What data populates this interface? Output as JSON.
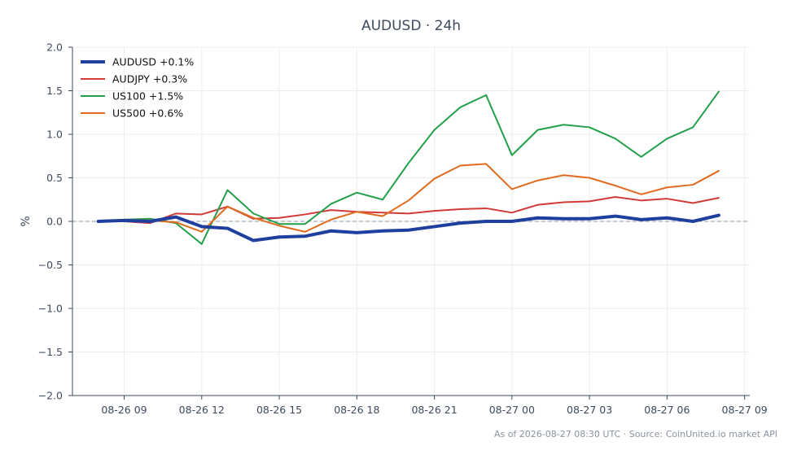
{
  "chart_data": {
    "type": "line",
    "title": "AUDUSD · 24h",
    "ylabel": "%",
    "xlabel": "",
    "ylim": [
      -2.0,
      2.0
    ],
    "yticks": [
      "2.0",
      "1.5",
      "1.0",
      "0.5",
      "0.0",
      "−0.5",
      "−1.0",
      "−1.5",
      "−2.0"
    ],
    "ytick_values": [
      2.0,
      1.5,
      1.0,
      0.5,
      0.0,
      -0.5,
      -1.0,
      -1.5,
      -2.0
    ],
    "xticks": [
      "08-26 09",
      "08-26 12",
      "08-26 15",
      "08-26 18",
      "08-26 21",
      "08-27 00",
      "08-27 03",
      "08-27 06",
      "08-27 09"
    ],
    "x": [
      "08-26 08:00",
      "08-26 09:00",
      "08-26 10:00",
      "08-26 11:00",
      "08-26 12:00",
      "08-26 13:00",
      "08-26 14:00",
      "08-26 15:00",
      "08-26 16:00",
      "08-26 17:00",
      "08-26 18:00",
      "08-26 19:00",
      "08-26 20:00",
      "08-26 21:00",
      "08-26 22:00",
      "08-26 23:00",
      "08-27 00:00",
      "08-27 01:00",
      "08-27 02:00",
      "08-27 03:00",
      "08-27 04:00",
      "08-27 05:00",
      "08-27 06:00",
      "08-27 07:00",
      "08-27 08:00"
    ],
    "xtick_hours": [
      1,
      4,
      7,
      10,
      13,
      16,
      19,
      22,
      25
    ],
    "x_range_hours": [
      -1.0,
      25.2
    ],
    "grid": true,
    "zero_line": true,
    "legend_position": "top-left",
    "series": [
      {
        "name": "AUDUSD +0.1%",
        "color": "#1f3f9e",
        "width": 4,
        "values": [
          0.0,
          0.01,
          0.0,
          0.05,
          -0.06,
          -0.08,
          -0.22,
          -0.18,
          -0.17,
          -0.11,
          -0.13,
          -0.11,
          -0.1,
          -0.06,
          -0.02,
          0.0,
          0.0,
          0.04,
          0.03,
          0.03,
          0.06,
          0.02,
          0.04,
          0.0,
          0.07
        ]
      },
      {
        "name": "AUDJPY +0.3%",
        "color": "#d23a36",
        "width": 2,
        "values": [
          0.0,
          0.0,
          -0.02,
          0.09,
          0.08,
          0.17,
          0.03,
          0.04,
          0.08,
          0.13,
          0.11,
          0.1,
          0.09,
          0.12,
          0.14,
          0.15,
          0.1,
          0.19,
          0.22,
          0.23,
          0.28,
          0.24,
          0.26,
          0.21,
          0.27
        ]
      },
      {
        "name": "US100 +1.5%",
        "color": "#23a04a",
        "width": 2,
        "values": [
          0.0,
          0.02,
          0.03,
          -0.02,
          -0.26,
          0.36,
          0.09,
          -0.03,
          -0.03,
          0.2,
          0.33,
          0.25,
          0.67,
          1.05,
          1.31,
          1.45,
          0.76,
          1.05,
          1.11,
          1.08,
          0.95,
          0.74,
          0.95,
          1.08,
          1.49
        ]
      },
      {
        "name": "US500 +0.6%",
        "color": "#e06b1f",
        "width": 2,
        "values": [
          0.0,
          0.02,
          0.01,
          -0.01,
          -0.12,
          0.17,
          0.04,
          -0.05,
          -0.12,
          0.02,
          0.11,
          0.06,
          0.24,
          0.49,
          0.64,
          0.66,
          0.37,
          0.47,
          0.53,
          0.5,
          0.41,
          0.31,
          0.39,
          0.42,
          0.58
        ]
      }
    ]
  },
  "footer": {
    "note": "As of 2026-08-27 08:30 UTC · Source: CoinUnited.io market API"
  }
}
